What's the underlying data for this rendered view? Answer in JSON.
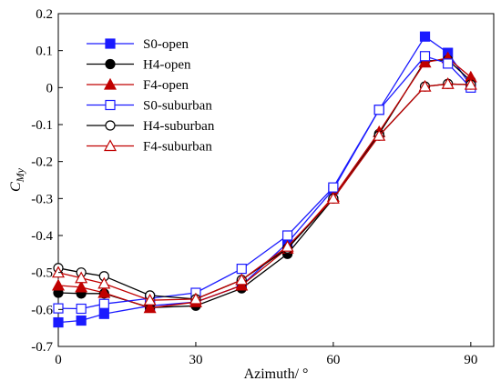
{
  "chart_data": {
    "type": "line",
    "xlabel": "Azimuth/ °",
    "ylabel": "C",
    "ylabel_sub": "My",
    "xlim": [
      0,
      95
    ],
    "ylim": [
      -0.7,
      0.2
    ],
    "xticks": [
      0,
      30,
      60,
      90
    ],
    "xtick_labels": [
      "0",
      "30",
      "60",
      "90"
    ],
    "yticks": [
      0.2,
      0.1,
      0,
      -0.1,
      -0.2,
      -0.3,
      -0.4,
      -0.5,
      -0.6,
      -0.7
    ],
    "ytick_labels": [
      "0.2",
      "0.1",
      "0",
      "-0.1",
      "-0.2",
      "-0.3",
      "-0.4",
      "-0.5",
      "-0.6",
      "-0.7"
    ],
    "grid": false,
    "legend_position": "top-left",
    "x": [
      0,
      5,
      10,
      20,
      30,
      40,
      50,
      60,
      70,
      80,
      85,
      90
    ],
    "series": [
      {
        "name": "S0-open",
        "color": "#1a1aff",
        "marker": "square",
        "filled": true,
        "values": [
          -0.635,
          -0.63,
          -0.612,
          -0.59,
          -0.58,
          -0.535,
          -0.42,
          -0.275,
          -0.06,
          0.138,
          0.094,
          0.005
        ]
      },
      {
        "name": "H4-open",
        "color": "#000000",
        "marker": "circle",
        "filled": true,
        "values": [
          -0.555,
          -0.557,
          -0.557,
          -0.595,
          -0.59,
          -0.543,
          -0.45,
          -0.3,
          -0.125,
          0.072,
          0.075,
          0.018
        ]
      },
      {
        "name": "F4-open",
        "color": "#c00000",
        "marker": "triangle",
        "filled": true,
        "values": [
          -0.535,
          -0.54,
          -0.555,
          -0.596,
          -0.58,
          -0.535,
          -0.435,
          -0.295,
          -0.12,
          0.068,
          0.08,
          0.028
        ]
      },
      {
        "name": "S0-suburban",
        "color": "#1a1aff",
        "marker": "square",
        "filled": false,
        "values": [
          -0.597,
          -0.598,
          -0.585,
          -0.57,
          -0.555,
          -0.49,
          -0.4,
          -0.27,
          -0.06,
          0.085,
          0.065,
          0.0
        ]
      },
      {
        "name": "H4-suburban",
        "color": "#000000",
        "marker": "circle",
        "filled": false,
        "values": [
          -0.488,
          -0.5,
          -0.51,
          -0.562,
          -0.572,
          -0.52,
          -0.435,
          -0.3,
          -0.13,
          0.003,
          0.01,
          0.008
        ]
      },
      {
        "name": "F4-suburban",
        "color": "#c00000",
        "marker": "triangle",
        "filled": false,
        "values": [
          -0.5,
          -0.515,
          -0.53,
          -0.575,
          -0.572,
          -0.52,
          -0.43,
          -0.3,
          -0.13,
          0.003,
          0.01,
          0.008
        ]
      }
    ]
  }
}
